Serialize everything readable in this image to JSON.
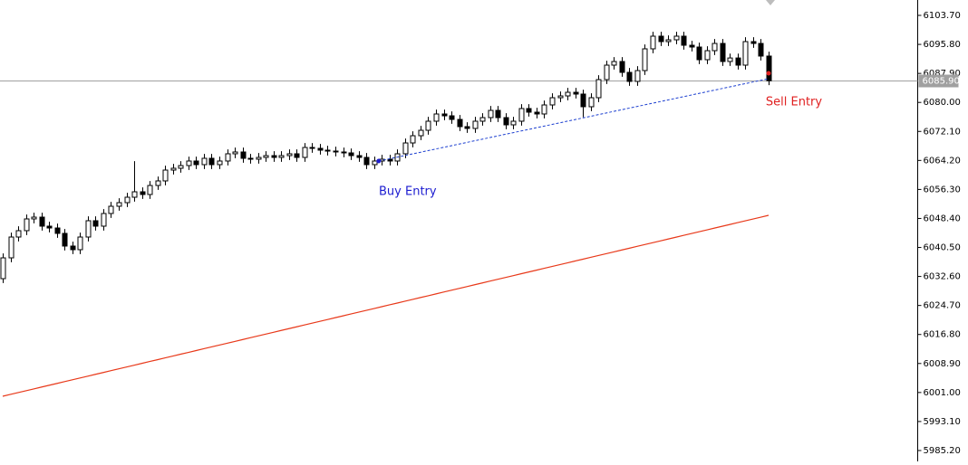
{
  "chart_data": {
    "type": "candlestick",
    "ylim": [
      5982.24,
      6107.89
    ],
    "yticks": [
      {
        "value": 6103.7,
        "label": "6103.70"
      },
      {
        "value": 6095.8,
        "label": "6095.80"
      },
      {
        "value": 6087.9,
        "label": "6087.90"
      },
      {
        "value": 6080.0,
        "label": "6080.00"
      },
      {
        "value": 6072.1,
        "label": "6072.10"
      },
      {
        "value": 6064.2,
        "label": "6064.20"
      },
      {
        "value": 6056.3,
        "label": "6056.30"
      },
      {
        "value": 6048.4,
        "label": "6048.40"
      },
      {
        "value": 6040.5,
        "label": "6040.50"
      },
      {
        "value": 6032.6,
        "label": "6032.60"
      },
      {
        "value": 6024.7,
        "label": "6024.70"
      },
      {
        "value": 6016.8,
        "label": "6016.80"
      },
      {
        "value": 6008.9,
        "label": "6008.90"
      },
      {
        "value": 6001.0,
        "label": "6001.00"
      },
      {
        "value": 5993.1,
        "label": "5993.10"
      },
      {
        "value": 5985.2,
        "label": "5985.20"
      }
    ],
    "grid": false,
    "up_color": "#ffffff",
    "down_color": "#000000",
    "wick_color": "#000000",
    "open": [
      6032.0,
      6037.67,
      6043.34,
      6045.07,
      6048.27,
      6048.76,
      6046.3,
      6045.8,
      6044.33,
      6040.88,
      6039.89,
      6043.34,
      6047.78,
      6046.3,
      6049.75,
      6051.72,
      6052.7,
      6054.18,
      6055.66,
      6054.92,
      6057.38,
      6058.62,
      6061.57,
      6062.07,
      6062.8,
      6064.04,
      6063.05,
      6064.78,
      6063.05,
      6064.04,
      6066.01,
      6066.5,
      6064.78,
      6064.53,
      6065.02,
      6065.51,
      6065.02,
      6065.51,
      6066.01,
      6065.02,
      6067.73,
      6067.49,
      6066.99,
      6066.75,
      6066.5,
      6066.25,
      6065.51,
      6065.02,
      6063.05,
      6064.04,
      6064.53,
      6064.04,
      6066.01,
      6068.96,
      6070.93,
      6072.41,
      6074.88,
      6076.85,
      6076.35,
      6075.37,
      6073.4,
      6072.91,
      6074.88,
      6075.86,
      6077.83,
      6075.86,
      6073.89,
      6074.88,
      6078.33,
      6077.34,
      6076.85,
      6079.31,
      6081.28,
      6081.77,
      6082.76,
      6082.27,
      6078.82,
      6081.28,
      6086.21,
      6090.15,
      6091.14,
      6088.18,
      6085.72,
      6088.67,
      6094.59,
      6098.04,
      6096.56,
      6097.05,
      6098.04,
      6095.57,
      6095.08,
      6091.63,
      6094.09,
      6096.06,
      6091.14,
      6092.1,
      6090.15,
      6096.56,
      6096.06,
      6092.62
    ],
    "high": [
      6038.87,
      6044.54,
      6046.27,
      6049.47,
      6049.96,
      6049.96,
      6047.5,
      6047.0,
      6045.53,
      6042.08,
      6044.54,
      6048.98,
      6048.98,
      6050.95,
      6052.92,
      6053.9,
      6055.38,
      6064.0,
      6056.86,
      6058.58,
      6059.82,
      6062.77,
      6063.27,
      6064.0,
      6065.24,
      6065.24,
      6065.98,
      6065.98,
      6065.24,
      6067.21,
      6067.7,
      6067.7,
      6065.98,
      6066.22,
      6066.71,
      6066.71,
      6066.71,
      6067.21,
      6067.21,
      6068.93,
      6068.93,
      6068.69,
      6068.19,
      6067.95,
      6067.7,
      6067.45,
      6066.71,
      6066.22,
      6065.24,
      6065.73,
      6065.73,
      6067.21,
      6070.16,
      6072.13,
      6073.61,
      6076.08,
      6078.05,
      6078.05,
      6077.55,
      6076.57,
      6074.6,
      6076.08,
      6077.06,
      6079.03,
      6079.03,
      6077.06,
      6076.08,
      6079.53,
      6079.53,
      6078.54,
      6080.51,
      6082.48,
      6082.97,
      6083.96,
      6083.96,
      6083.47,
      6082.48,
      6087.41,
      6091.35,
      6092.34,
      6092.34,
      6089.38,
      6089.87,
      6095.79,
      6099.24,
      6099.24,
      6098.25,
      6099.24,
      6099.24,
      6096.77,
      6096.28,
      6095.29,
      6097.26,
      6097.26,
      6093.3,
      6093.3,
      6097.76,
      6097.76,
      6097.26,
      6093.82
    ],
    "low": [
      6030.8,
      6036.47,
      6042.14,
      6043.87,
      6047.07,
      6045.1,
      6044.6,
      6043.13,
      6039.68,
      6038.69,
      6038.69,
      6042.14,
      6045.1,
      6045.1,
      6048.55,
      6050.52,
      6051.5,
      6052.98,
      6053.72,
      6053.72,
      6056.18,
      6057.42,
      6060.37,
      6060.87,
      6061.6,
      6061.85,
      6061.85,
      6061.85,
      6061.85,
      6062.84,
      6064.81,
      6063.58,
      6063.33,
      6063.33,
      6063.82,
      6063.82,
      6063.82,
      6064.31,
      6063.82,
      6063.82,
      6066.29,
      6065.79,
      6065.55,
      6065.3,
      6065.05,
      6064.31,
      6063.82,
      6061.85,
      6061.85,
      6062.84,
      6062.84,
      6062.84,
      6064.81,
      6067.76,
      6069.73,
      6071.21,
      6073.68,
      6075.15,
      6074.17,
      6072.2,
      6071.71,
      6071.71,
      6073.68,
      6074.66,
      6074.66,
      6072.69,
      6072.69,
      6073.68,
      6076.14,
      6075.65,
      6075.65,
      6078.11,
      6080.08,
      6080.57,
      6081.07,
      6076.0,
      6077.62,
      6080.08,
      6085.01,
      6088.95,
      6086.98,
      6084.52,
      6084.52,
      6087.47,
      6093.39,
      6095.36,
      6095.36,
      6095.85,
      6094.37,
      6093.88,
      6090.43,
      6090.43,
      6092.89,
      6089.94,
      6089.94,
      6088.95,
      6088.95,
      6094.86,
      6091.42,
      6084.7
    ],
    "close": [
      6037.67,
      6043.34,
      6045.07,
      6048.27,
      6048.76,
      6046.3,
      6045.8,
      6044.33,
      6040.88,
      6039.89,
      6043.34,
      6047.78,
      6046.3,
      6049.75,
      6051.72,
      6052.7,
      6054.18,
      6055.66,
      6054.92,
      6057.38,
      6058.62,
      6061.57,
      6062.07,
      6062.8,
      6064.04,
      6063.05,
      6064.78,
      6063.05,
      6064.04,
      6066.01,
      6066.5,
      6064.78,
      6064.53,
      6065.02,
      6065.51,
      6065.02,
      6065.51,
      6066.01,
      6065.02,
      6067.73,
      6067.49,
      6066.99,
      6066.75,
      6066.5,
      6066.25,
      6065.51,
      6065.02,
      6063.05,
      6064.04,
      6064.53,
      6064.04,
      6066.01,
      6068.96,
      6070.93,
      6072.41,
      6074.88,
      6076.85,
      6076.35,
      6075.37,
      6073.4,
      6072.91,
      6074.88,
      6075.86,
      6077.83,
      6075.86,
      6073.89,
      6074.88,
      6078.33,
      6077.34,
      6076.85,
      6079.31,
      6081.28,
      6081.77,
      6082.76,
      6082.27,
      6078.82,
      6081.28,
      6086.21,
      6090.15,
      6091.14,
      6088.18,
      6085.72,
      6088.67,
      6094.59,
      6098.04,
      6096.56,
      6097.05,
      6098.04,
      6095.57,
      6095.08,
      6091.63,
      6094.09,
      6096.06,
      6091.14,
      6092.1,
      6090.15,
      6096.56,
      6096.06,
      6092.62,
      6085.9
    ],
    "moving_average": {
      "color": "#e8391a",
      "values": [
        5999.98,
        6000.48,
        6000.98,
        6001.47,
        6001.97,
        6002.47,
        6002.97,
        6003.46,
        6003.96,
        6004.46,
        6004.96,
        6005.45,
        6005.95,
        6006.45,
        6006.95,
        6007.45,
        6007.94,
        6008.44,
        6008.94,
        6009.44,
        6009.93,
        6010.43,
        6010.93,
        6011.43,
        6011.92,
        6012.42,
        6012.92,
        6013.42,
        6013.92,
        6014.41,
        6014.91,
        6015.41,
        6015.91,
        6016.4,
        6016.9,
        6017.4,
        6017.9,
        6018.39,
        6018.89,
        6019.39,
        6019.89,
        6020.39,
        6020.88,
        6021.38,
        6021.88,
        6022.38,
        6022.87,
        6023.37,
        6023.87,
        6024.37,
        6024.87,
        6025.36,
        6025.86,
        6026.36,
        6026.86,
        6027.35,
        6027.85,
        6028.35,
        6028.85,
        6029.34,
        6029.84,
        6030.34,
        6030.84,
        6031.34,
        6031.83,
        6032.33,
        6032.83,
        6033.33,
        6033.82,
        6034.32,
        6034.82,
        6035.32,
        6035.81,
        6036.31,
        6036.81,
        6037.31,
        6037.81,
        6038.3,
        6038.8,
        6039.3,
        6039.8,
        6040.29,
        6040.79,
        6041.29,
        6041.79,
        6042.28,
        6042.78,
        6043.28,
        6043.78,
        6044.28,
        6044.77,
        6045.27,
        6045.77,
        6046.27,
        6046.76,
        6047.26,
        6047.76,
        6048.26,
        6048.75,
        6049.25
      ]
    },
    "current_price": {
      "value": 6085.9,
      "label": "6085.90"
    },
    "entries": [
      {
        "label": "Buy Entry",
        "index": 48.6,
        "price": 6064.03,
        "color": "#1c1cd0"
      },
      {
        "label": "Sell Entry",
        "index": 99,
        "price": 6086.46,
        "color": "#e02020"
      }
    ],
    "trendline_color": "#1c3fd0"
  }
}
